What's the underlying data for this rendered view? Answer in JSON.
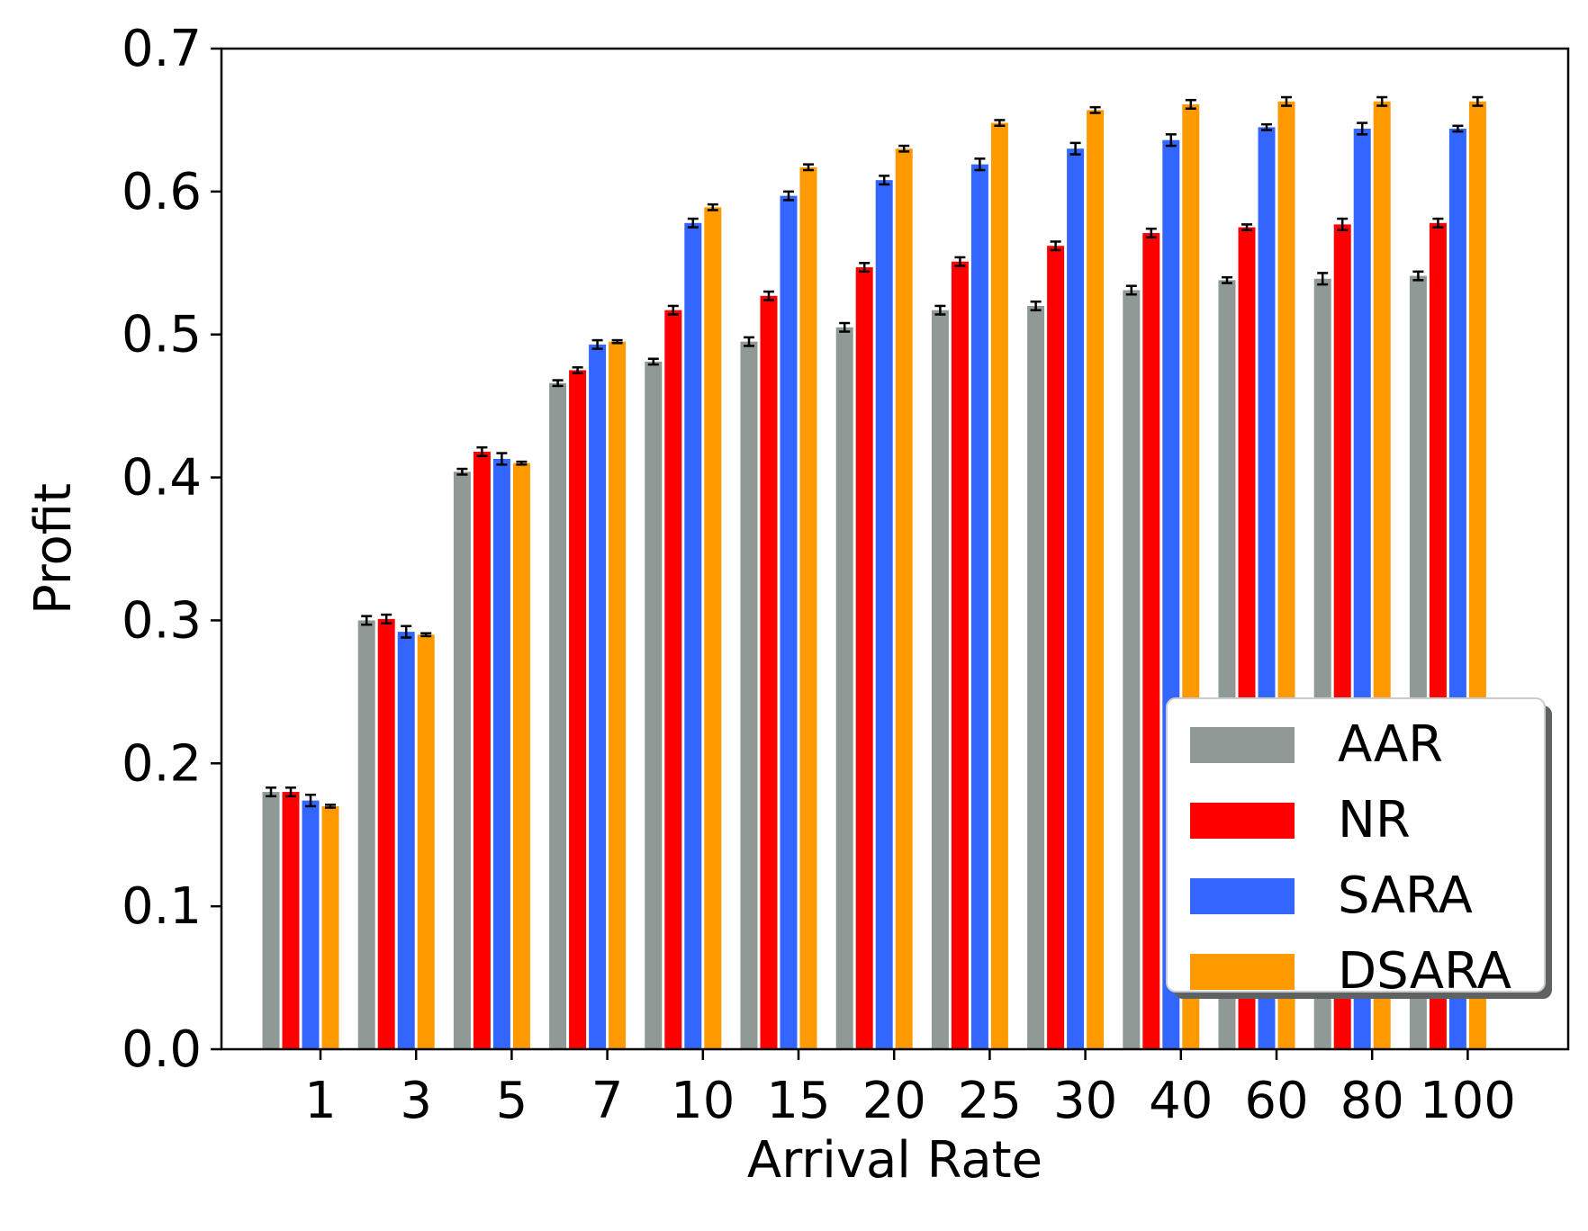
{
  "chart_data": {
    "type": "bar",
    "xlabel": "Arrival Rate",
    "ylabel": "Profit",
    "ylim": [
      0.0,
      0.7
    ],
    "yticks": [
      "0.0",
      "0.1",
      "0.2",
      "0.3",
      "0.4",
      "0.5",
      "0.6",
      "0.7"
    ],
    "categories": [
      "1",
      "3",
      "5",
      "7",
      "10",
      "15",
      "20",
      "25",
      "30",
      "40",
      "60",
      "80",
      "100"
    ],
    "grid": false,
    "legend_position": "lower-right",
    "series": [
      {
        "name": "AAR",
        "color": "#8f9a97",
        "values": [
          0.18,
          0.3,
          0.404,
          0.466,
          0.481,
          0.495,
          0.505,
          0.517,
          0.52,
          0.531,
          0.538,
          0.539,
          0.541
        ],
        "errors": [
          0.003,
          0.003,
          0.002,
          0.002,
          0.002,
          0.003,
          0.003,
          0.003,
          0.003,
          0.003,
          0.002,
          0.004,
          0.003
        ]
      },
      {
        "name": "NR",
        "color": "#ff0000",
        "values": [
          0.18,
          0.301,
          0.418,
          0.475,
          0.517,
          0.527,
          0.547,
          0.551,
          0.562,
          0.571,
          0.575,
          0.577,
          0.578
        ],
        "errors": [
          0.003,
          0.003,
          0.003,
          0.002,
          0.003,
          0.003,
          0.003,
          0.003,
          0.003,
          0.003,
          0.002,
          0.004,
          0.003
        ]
      },
      {
        "name": "SARA",
        "color": "#3366ff",
        "values": [
          0.174,
          0.292,
          0.413,
          0.493,
          0.578,
          0.597,
          0.608,
          0.619,
          0.63,
          0.636,
          0.645,
          0.644,
          0.644
        ],
        "errors": [
          0.004,
          0.004,
          0.004,
          0.003,
          0.003,
          0.003,
          0.003,
          0.004,
          0.004,
          0.004,
          0.002,
          0.004,
          0.002
        ]
      },
      {
        "name": "DSARA",
        "color": "#ff9900",
        "values": [
          0.17,
          0.29,
          0.41,
          0.495,
          0.589,
          0.617,
          0.63,
          0.648,
          0.657,
          0.661,
          0.663,
          0.663,
          0.663
        ],
        "errors": [
          0.001,
          0.001,
          0.001,
          0.001,
          0.002,
          0.002,
          0.002,
          0.002,
          0.002,
          0.003,
          0.003,
          0.003,
          0.003
        ]
      }
    ]
  }
}
